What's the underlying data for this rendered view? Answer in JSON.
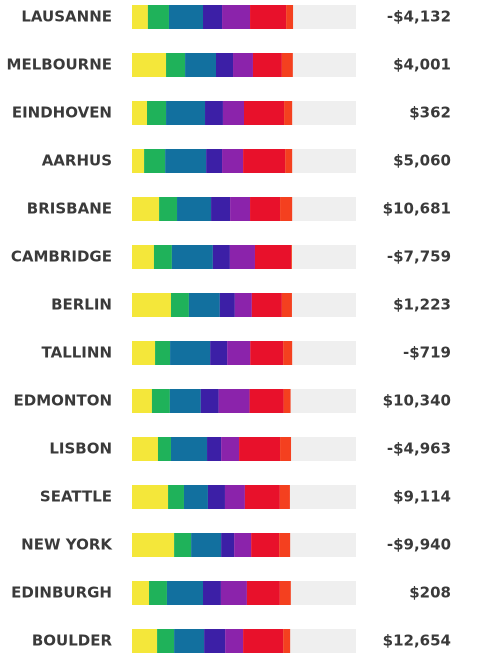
{
  "colors": [
    "#f4e73a",
    "#1fb25a",
    "#12709f",
    "#3c1fa6",
    "#8b23ab",
    "#e8112b",
    "#f4401f"
  ],
  "track_color": "#efefef",
  "rows": [
    {
      "name": "LAUSANNE",
      "amount": "-$4,132",
      "segments": [
        7.1,
        9.4,
        15.2,
        8.5,
        12.5,
        16.1,
        3.1
      ]
    },
    {
      "name": "MELBOURNE",
      "amount": "$4,001",
      "segments": [
        15.2,
        8.5,
        13.8,
        7.6,
        8.9,
        12.9,
        4.9
      ]
    },
    {
      "name": "EINDHOVEN",
      "amount": "$362",
      "segments": [
        6.7,
        8.5,
        17.4,
        8.0,
        9.4,
        17.9,
        3.6
      ]
    },
    {
      "name": "AARHUS",
      "amount": "$5,060",
      "segments": [
        5.4,
        9.4,
        18.3,
        7.1,
        9.4,
        18.8,
        3.1
      ]
    },
    {
      "name": "BRISBANE",
      "amount": "$10,681",
      "segments": [
        12.1,
        8.0,
        15.2,
        8.5,
        8.9,
        13.4,
        5.4
      ]
    },
    {
      "name": "CAMBRIDGE",
      "amount": "-$7,759",
      "segments": [
        9.8,
        8.0,
        18.3,
        7.6,
        11.2,
        16.1,
        0.4
      ]
    },
    {
      "name": "BERLIN",
      "amount": "$1,223",
      "segments": [
        17.4,
        8.0,
        13.8,
        6.7,
        7.6,
        13.4,
        4.5
      ]
    },
    {
      "name": "TALLINN",
      "amount": "-$719",
      "segments": [
        10.3,
        6.7,
        17.9,
        7.6,
        10.3,
        14.7,
        4.0
      ]
    },
    {
      "name": "EDMONTON",
      "amount": "$10,340",
      "segments": [
        8.9,
        8.0,
        13.8,
        8.0,
        13.8,
        15.2,
        3.1
      ]
    },
    {
      "name": "LISBON",
      "amount": "-$4,963",
      "segments": [
        11.6,
        5.8,
        16.1,
        6.3,
        8.0,
        18.3,
        4.9
      ]
    },
    {
      "name": "SEATTLE",
      "amount": "$9,114",
      "segments": [
        16.1,
        7.1,
        10.7,
        7.6,
        8.9,
        15.6,
        4.5
      ]
    },
    {
      "name": "NEW YORK",
      "amount": "-$9,940",
      "segments": [
        18.8,
        7.6,
        13.4,
        5.8,
        7.6,
        12.5,
        4.9
      ]
    },
    {
      "name": "EDINBURGH",
      "amount": "$208",
      "segments": [
        7.6,
        8.0,
        16.1,
        8.0,
        11.6,
        14.7,
        4.9
      ]
    },
    {
      "name": "BOULDER",
      "amount": "$12,654",
      "segments": [
        11.2,
        7.6,
        13.4,
        9.4,
        8.0,
        17.9,
        3.1
      ]
    }
  ]
}
